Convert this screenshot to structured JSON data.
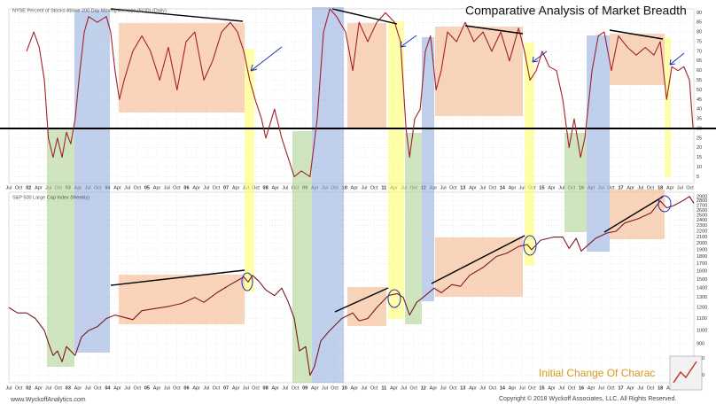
{
  "chart_data": [
    {
      "type": "line",
      "title": "Comparative Analysis of Market Breadth",
      "subtitle": "NYSE Percent of Stocks Above 200 Day Moving Average (EOD) (Daily)",
      "annotations": [
        "www.WyckoffAnalytics.com",
        "Copyright © 2018 Wyckoff Associates, LLC. All Rights Reserved.",
        "Initial Change Of Charac"
      ],
      "xlim": [
        2001.5,
        2018.85
      ],
      "xticks": [
        {
          "value": 2001.5,
          "label": "Jul"
        },
        {
          "value": 2001.75,
          "label": "Oct"
        },
        {
          "value": 2002,
          "label": "02"
        },
        {
          "value": 2002.25,
          "label": "Apr"
        },
        {
          "value": 2002.5,
          "label": "Jul"
        },
        {
          "value": 2002.75,
          "label": "Oct"
        },
        {
          "value": 2003,
          "label": "03"
        },
        {
          "value": 2003.25,
          "label": "Apr"
        },
        {
          "value": 2003.5,
          "label": "Jul"
        },
        {
          "value": 2003.75,
          "label": "Oct"
        },
        {
          "value": 2004,
          "label": "04"
        },
        {
          "value": 2004.25,
          "label": "Apr"
        },
        {
          "value": 2004.5,
          "label": "Jul"
        },
        {
          "value": 2004.75,
          "label": "Oct"
        },
        {
          "value": 2005,
          "label": "05"
        },
        {
          "value": 2005.25,
          "label": "Apr"
        },
        {
          "value": 2005.5,
          "label": "Jul"
        },
        {
          "value": 2005.75,
          "label": "Oct"
        },
        {
          "value": 2006,
          "label": "06"
        },
        {
          "value": 2006.25,
          "label": "Apr"
        },
        {
          "value": 2006.5,
          "label": "Jul"
        },
        {
          "value": 2006.75,
          "label": "Oct"
        },
        {
          "value": 2007,
          "label": "07"
        },
        {
          "value": 2007.25,
          "label": "Apr"
        },
        {
          "value": 2007.5,
          "label": "Jul"
        },
        {
          "value": 2007.75,
          "label": "Oct"
        },
        {
          "value": 2008,
          "label": "08"
        },
        {
          "value": 2008.25,
          "label": "Apr"
        },
        {
          "value": 2008.5,
          "label": "Jul"
        },
        {
          "value": 2008.75,
          "label": "Oct"
        },
        {
          "value": 2009,
          "label": "09"
        },
        {
          "value": 2009.25,
          "label": "Apr"
        },
        {
          "value": 2009.5,
          "label": "Jul"
        },
        {
          "value": 2009.75,
          "label": "Oct"
        },
        {
          "value": 2010,
          "label": "10"
        },
        {
          "value": 2010.25,
          "label": "Apr"
        },
        {
          "value": 2010.5,
          "label": "Jul"
        },
        {
          "value": 2010.75,
          "label": "Oct"
        },
        {
          "value": 2011,
          "label": "11"
        },
        {
          "value": 2011.25,
          "label": "Apr"
        },
        {
          "value": 2011.5,
          "label": "Jul"
        },
        {
          "value": 2011.75,
          "label": "Oct"
        },
        {
          "value": 2012,
          "label": "12"
        },
        {
          "value": 2012.25,
          "label": "Apr"
        },
        {
          "value": 2012.5,
          "label": "Jul"
        },
        {
          "value": 2012.75,
          "label": "Oct"
        },
        {
          "value": 2013,
          "label": "13"
        },
        {
          "value": 2013.25,
          "label": "Apr"
        },
        {
          "value": 2013.5,
          "label": "Jul"
        },
        {
          "value": 2013.75,
          "label": "Oct"
        },
        {
          "value": 2014,
          "label": "14"
        },
        {
          "value": 2014.25,
          "label": "Apr"
        },
        {
          "value": 2014.5,
          "label": "Jul"
        },
        {
          "value": 2014.75,
          "label": "Oct"
        },
        {
          "value": 2015,
          "label": "15"
        },
        {
          "value": 2015.25,
          "label": "Apr"
        },
        {
          "value": 2015.5,
          "label": "Jul"
        },
        {
          "value": 2015.75,
          "label": "Oct"
        },
        {
          "value": 2016,
          "label": "16"
        },
        {
          "value": 2016.25,
          "label": "Apr"
        },
        {
          "value": 2016.5,
          "label": "Jul"
        },
        {
          "value": 2016.75,
          "label": "Oct"
        },
        {
          "value": 2017,
          "label": "17"
        },
        {
          "value": 2017.25,
          "label": "Apr"
        },
        {
          "value": 2017.5,
          "label": "Jul"
        },
        {
          "value": 2017.75,
          "label": "Oct"
        },
        {
          "value": 2018,
          "label": "18"
        },
        {
          "value": 2018.25,
          "label": "Apr"
        },
        {
          "value": 2018.5,
          "label": "Jul"
        },
        {
          "value": 2018.75,
          "label": "Oct"
        }
      ],
      "ylim": [
        1.5,
        92
      ],
      "yticks": [
        5,
        10,
        15,
        20,
        25,
        30,
        35,
        40,
        45,
        50,
        55,
        60,
        65,
        70,
        75,
        80,
        85,
        90
      ],
      "grid": true,
      "reference_line": 30,
      "x": [
        2001.95,
        2002.13,
        2002.27,
        2002.4,
        2002.5,
        2002.62,
        2002.73,
        2002.85,
        2002.96,
        2003.07,
        2003.18,
        2003.3,
        2003.41,
        2003.52,
        2003.74,
        2003.97,
        2004.08,
        2004.19,
        2004.3,
        2004.42,
        2004.64,
        2004.87,
        2005.09,
        2005.32,
        2005.54,
        2005.76,
        2005.99,
        2006.21,
        2006.44,
        2006.66,
        2006.89,
        2007.11,
        2007.29,
        2007.45,
        2007.6,
        2007.74,
        2007.9,
        2008.01,
        2008.23,
        2008.41,
        2008.57,
        2008.73,
        2008.91,
        2009.13,
        2009.31,
        2009.47,
        2009.63,
        2009.8,
        2010.03,
        2010.21,
        2010.37,
        2010.59,
        2010.82,
        2011.04,
        2011.27,
        2011.42,
        2011.56,
        2011.65,
        2011.78,
        2011.92,
        2012.05,
        2012.18,
        2012.32,
        2012.45,
        2012.61,
        2012.84,
        2013.06,
        2013.28,
        2013.51,
        2013.73,
        2013.96,
        2014.18,
        2014.41,
        2014.56,
        2014.7,
        2014.86,
        2015.01,
        2015.19,
        2015.37,
        2015.53,
        2015.69,
        2015.82,
        2015.98,
        2016.09,
        2016.27,
        2016.43,
        2016.58,
        2016.76,
        2016.94,
        2017.17,
        2017.39,
        2017.62,
        2017.84,
        2018.0,
        2018.16,
        2018.29,
        2018.45,
        2018.6,
        2018.74,
        2018.83
      ],
      "series": [
        {
          "name": "NYSE Percent of Stocks Above 200 Day Moving Average",
          "color": "#a3202c",
          "values": [
            70,
            80,
            72,
            55,
            25,
            15,
            25,
            15,
            28,
            22,
            35,
            60,
            80,
            88,
            85,
            88,
            80,
            60,
            45,
            55,
            70,
            78,
            70,
            55,
            72,
            50,
            75,
            80,
            55,
            65,
            80,
            85,
            80,
            70,
            55,
            45,
            35,
            25,
            40,
            25,
            15,
            5,
            8,
            5,
            35,
            80,
            92,
            88,
            80,
            60,
            85,
            75,
            85,
            90,
            85,
            75,
            30,
            15,
            35,
            40,
            70,
            78,
            50,
            60,
            80,
            75,
            85,
            75,
            80,
            70,
            80,
            65,
            82,
            70,
            55,
            60,
            70,
            62,
            60,
            45,
            20,
            35,
            15,
            25,
            60,
            78,
            80,
            60,
            78,
            72,
            68,
            72,
            68,
            75,
            45,
            62,
            60,
            62,
            55,
            30
          ]
        }
      ]
    },
    {
      "type": "line",
      "subtitle": "S&P 500 Large Cap Index (Weekly)",
      "xlim": [
        2001.5,
        2018.85
      ],
      "ylim": [
        660,
        3000
      ],
      "log_scale": true,
      "yticks": [
        700,
        800,
        900,
        1000,
        1100,
        1200,
        1300,
        1400,
        1500,
        1600,
        1700,
        1800,
        1900,
        2000,
        2100,
        2200,
        2300,
        2400,
        2500,
        2600,
        2700,
        2800,
        2900
      ],
      "grid": true,
      "x": [
        2001.5,
        2001.72,
        2001.95,
        2002.17,
        2002.4,
        2002.51,
        2002.62,
        2002.73,
        2002.85,
        2002.96,
        2003.07,
        2003.18,
        2003.34,
        2003.52,
        2003.74,
        2003.97,
        2004.19,
        2004.42,
        2004.64,
        2004.87,
        2005.2,
        2005.54,
        2005.88,
        2006.21,
        2006.44,
        2006.77,
        2007.11,
        2007.34,
        2007.45,
        2007.56,
        2007.67,
        2007.83,
        2008.01,
        2008.23,
        2008.41,
        2008.57,
        2008.73,
        2008.86,
        2009.02,
        2009.13,
        2009.24,
        2009.4,
        2009.63,
        2009.93,
        2010.21,
        2010.37,
        2010.59,
        2010.82,
        2011.11,
        2011.34,
        2011.49,
        2011.65,
        2011.83,
        2012.05,
        2012.27,
        2012.45,
        2012.72,
        2012.94,
        2013.17,
        2013.51,
        2013.85,
        2014.12,
        2014.41,
        2014.63,
        2014.74,
        2014.97,
        2015.3,
        2015.53,
        2015.69,
        2015.87,
        2016.0,
        2016.13,
        2016.36,
        2016.65,
        2016.88,
        2017.1,
        2017.44,
        2017.77,
        2018.0,
        2018.16,
        2018.34,
        2018.56,
        2018.74,
        2018.85
      ],
      "series": [
        {
          "name": "S&P 500 Large Cap Index",
          "color": "#7a1820",
          "values": [
            1200,
            1150,
            1150,
            1100,
            1000,
            900,
            820,
            850,
            780,
            880,
            850,
            820,
            950,
            1000,
            1030,
            1100,
            1130,
            1110,
            1090,
            1170,
            1190,
            1210,
            1240,
            1300,
            1250,
            1350,
            1440,
            1500,
            1530,
            1470,
            1550,
            1480,
            1380,
            1320,
            1400,
            1260,
            1100,
            850,
            880,
            700,
            750,
            920,
            1000,
            1100,
            1150,
            1080,
            1100,
            1200,
            1320,
            1340,
            1300,
            1130,
            1250,
            1320,
            1400,
            1350,
            1440,
            1420,
            1550,
            1650,
            1800,
            1850,
            1950,
            1980,
            1900,
            2050,
            2100,
            2100,
            1920,
            2080,
            1880,
            1950,
            2080,
            2170,
            2200,
            2350,
            2430,
            2550,
            2800,
            2650,
            2700,
            2800,
            2900,
            2750
          ]
        }
      ]
    }
  ]
}
